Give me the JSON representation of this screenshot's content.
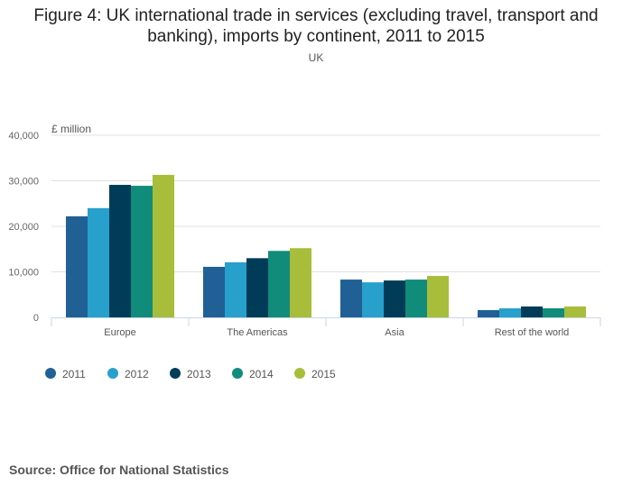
{
  "title": "Figure 4: UK international trade in services (excluding travel, transport and banking), imports by continent, 2011 to 2015",
  "title_line1": "Figure 4: UK international trade in services (excluding travel, transport and",
  "title_line2": "banking), imports by continent, 2011 to 2015",
  "subtitle": "UK",
  "source": "Source: Office for National Statistics",
  "chart_data": {
    "type": "bar",
    "title": "Figure 4: UK international trade in services (excluding travel, transport and banking), imports by continent, 2011 to 2015",
    "ylabel": "£ million",
    "xlabel": "",
    "ylim": [
      0,
      40000
    ],
    "yticks": [
      0,
      10000,
      20000,
      30000,
      40000
    ],
    "ytick_labels": [
      "0",
      "10,000",
      "20,000",
      "30,000",
      "40,000"
    ],
    "grid": true,
    "legend_position": "bottom-left",
    "categories": [
      "Europe",
      "The Americas",
      "Asia",
      "Rest of the world"
    ],
    "series": [
      {
        "name": "2011",
        "color": "#206095",
        "values": [
          22200,
          11100,
          8300,
          1600
        ]
      },
      {
        "name": "2012",
        "color": "#27a0cc",
        "values": [
          24000,
          12100,
          7700,
          2000
        ]
      },
      {
        "name": "2013",
        "color": "#003c57",
        "values": [
          29100,
          13000,
          8100,
          2400
        ]
      },
      {
        "name": "2014",
        "color": "#118c7b",
        "values": [
          28900,
          14600,
          8300,
          2000
        ]
      },
      {
        "name": "2015",
        "color": "#a8bd3a",
        "values": [
          31300,
          15200,
          9100,
          2400
        ]
      }
    ]
  }
}
